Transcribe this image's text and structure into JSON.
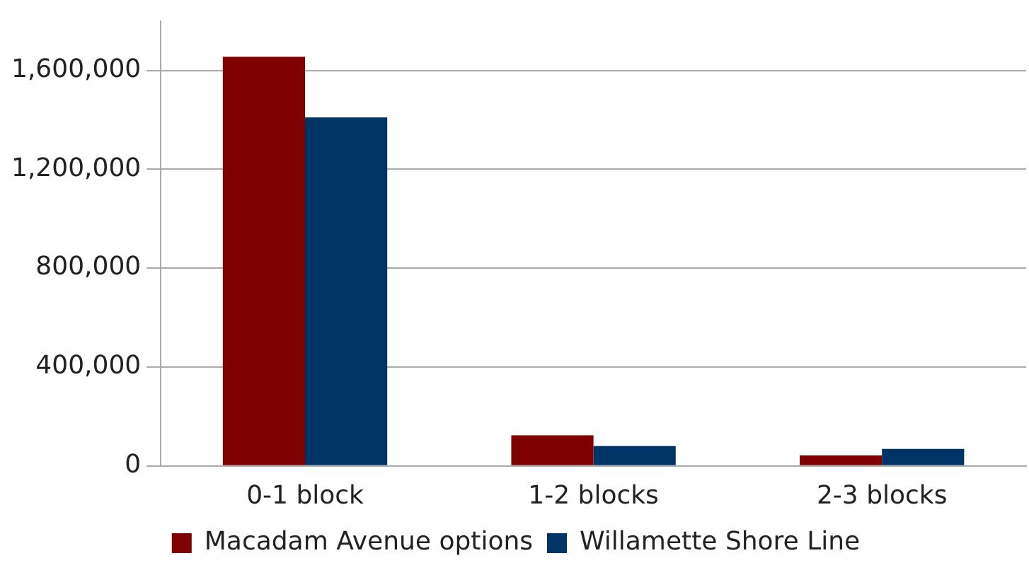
{
  "chart_data": {
    "type": "bar",
    "categories": [
      "0-1 block",
      "1-2 blocks",
      "2-3 blocks"
    ],
    "series": [
      {
        "name": "Macadam Avenue options",
        "color": "#7f0000",
        "values": [
          1655000,
          124000,
          42000
        ]
      },
      {
        "name": "Willamette Shore Line",
        "color": "#003366",
        "values": [
          1410000,
          80000,
          69000
        ]
      }
    ],
    "ylim": [
      0,
      1800000
    ],
    "yticks": [
      0,
      {
        "value": 400000,
        "label": "400,000"
      },
      {
        "value": 800000,
        "label": "800,000"
      },
      {
        "value": 1200000,
        "label": "1,200,000"
      },
      {
        "value": 1600000,
        "label": "1,600,000"
      }
    ],
    "grid": "y",
    "legend": "bottom"
  }
}
